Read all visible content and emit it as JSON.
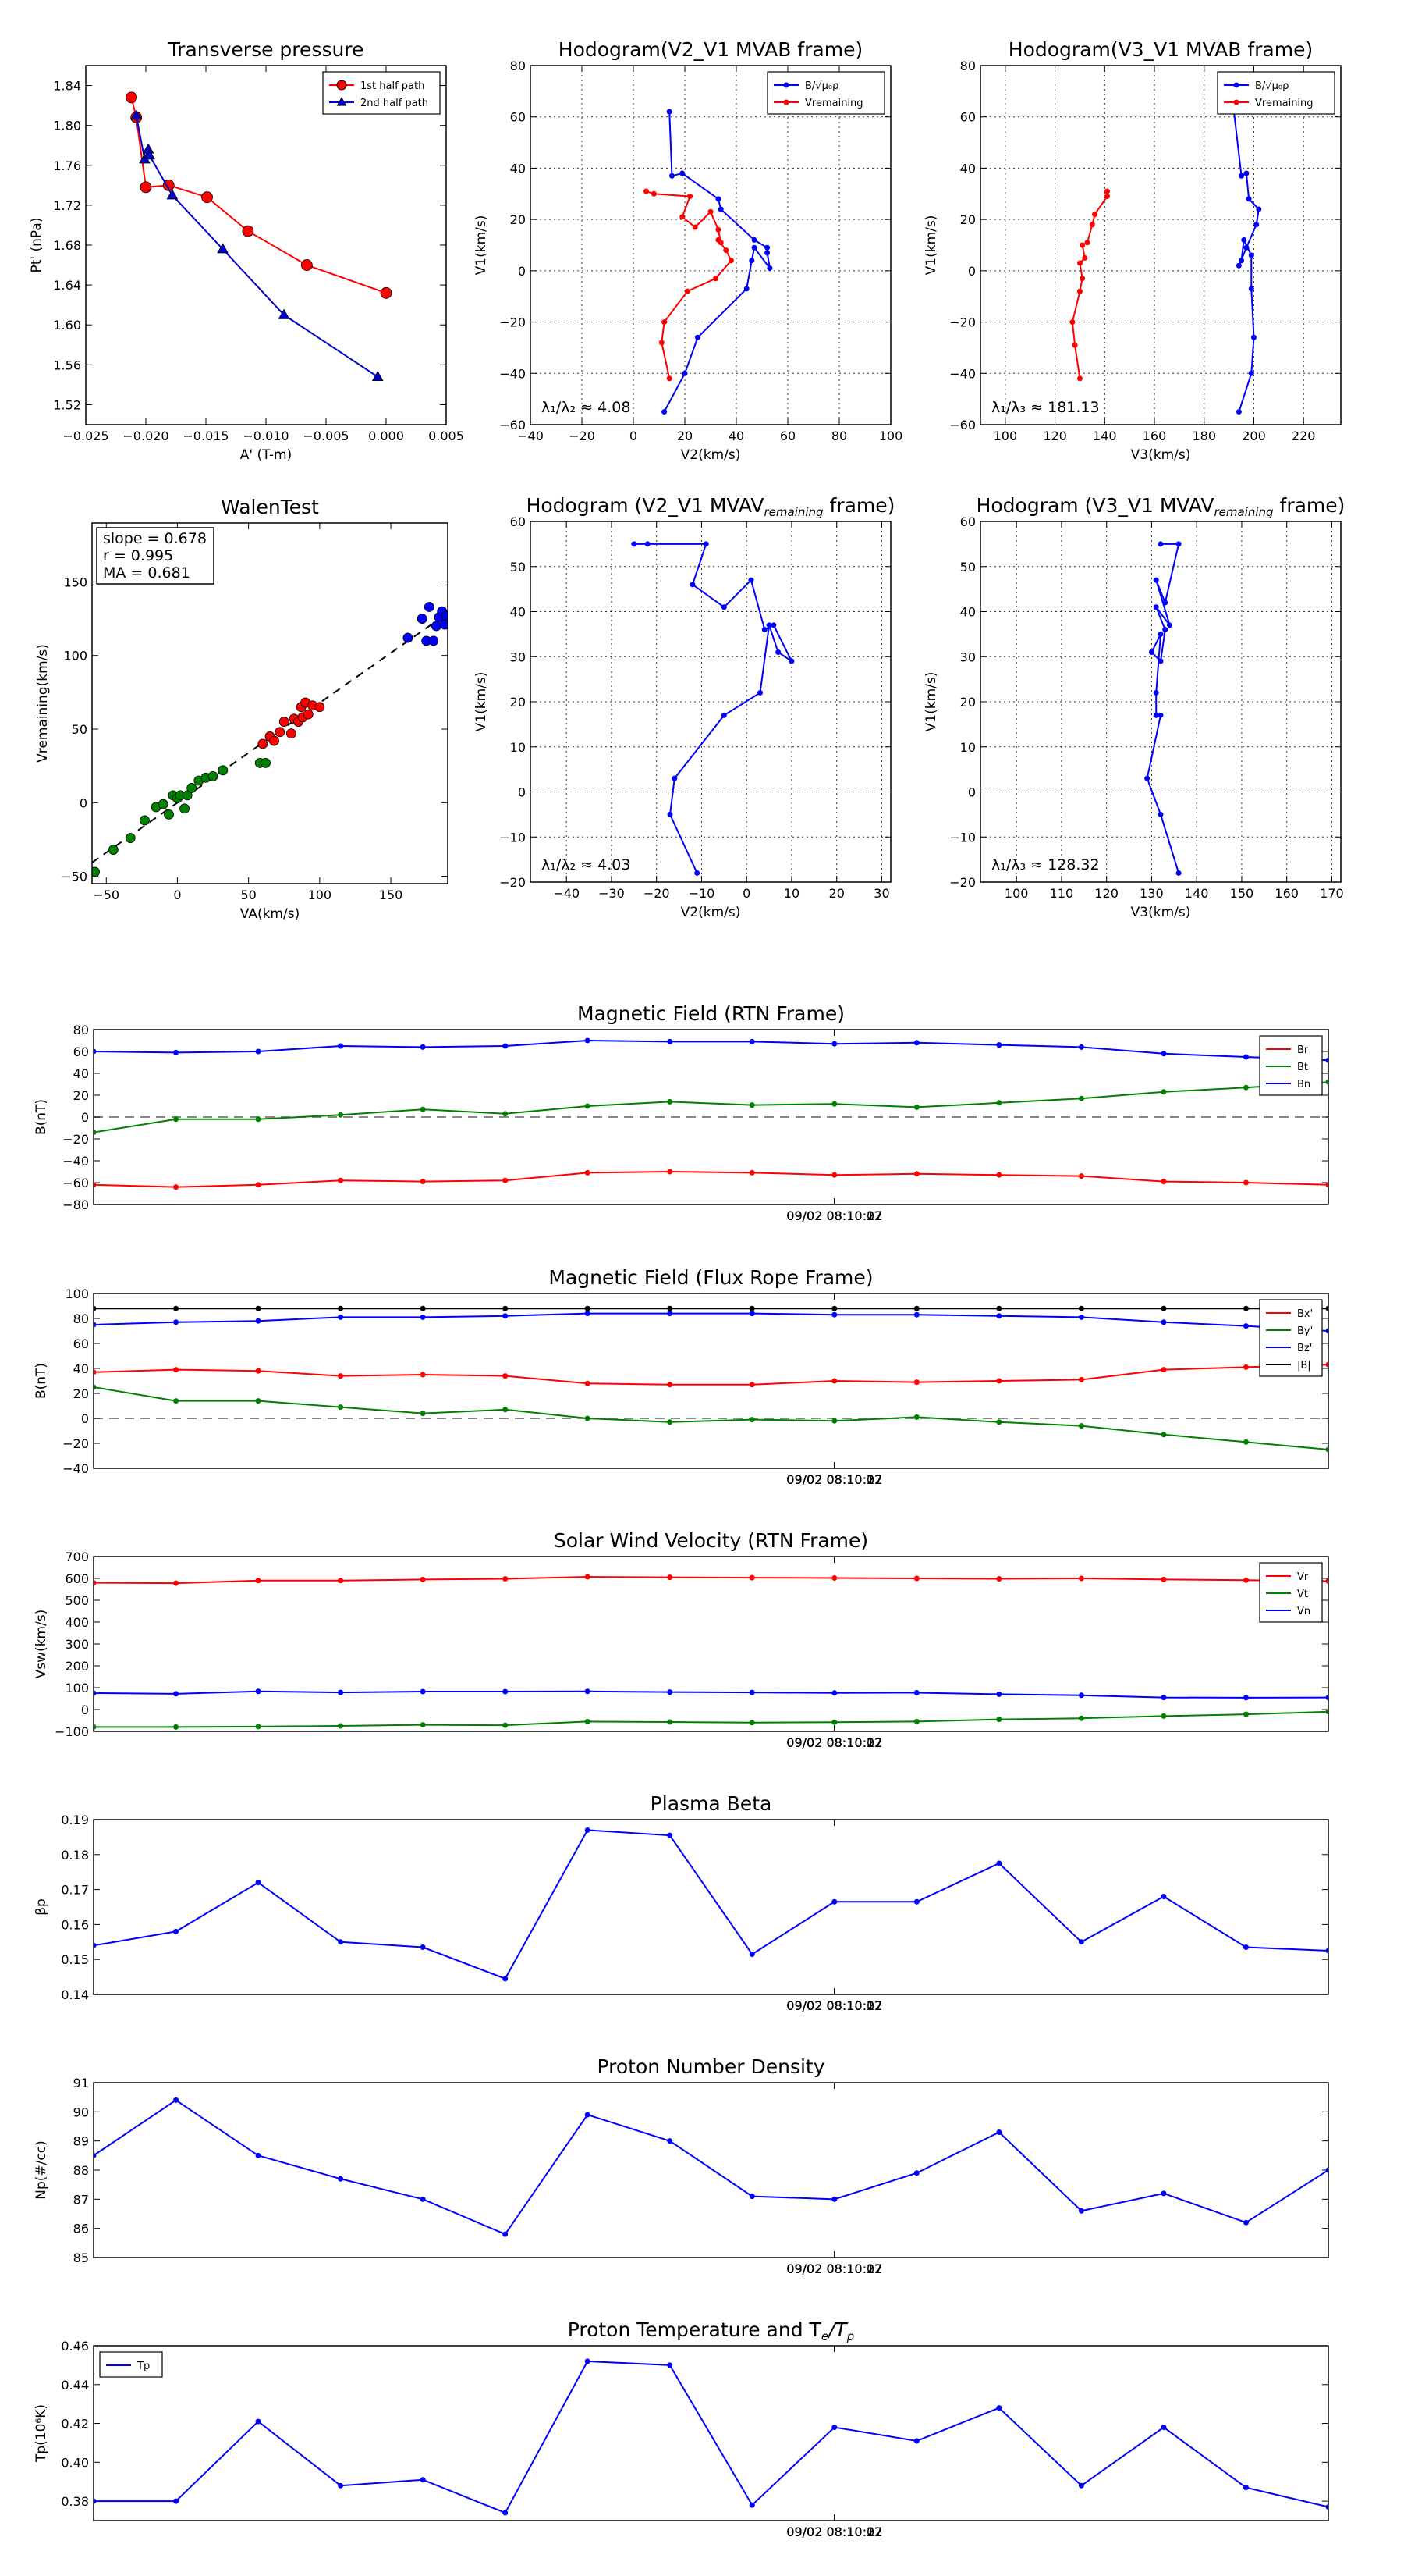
{
  "chart_data": [
    {
      "type": "scatter",
      "title": "Transverse pressure",
      "xlabel": "A' (T-m)",
      "ylabel": "Pt' (nPa)",
      "xlim": [
        -0.025,
        0.005
      ],
      "ylim": [
        1.5,
        1.86
      ],
      "xticks": [
        "−0.025",
        "−0.020",
        "−0.015",
        "−0.010",
        "−0.005",
        "0.000",
        "0.005"
      ],
      "yticks": [
        "1.52",
        "1.56",
        "1.60",
        "1.64",
        "1.68",
        "1.72",
        "1.76",
        "1.80",
        "1.84"
      ],
      "grid": false,
      "legend_position": "top-right",
      "series": [
        {
          "name": "1st half path",
          "color": "#ff0000",
          "marker": "circle",
          "x": [
            -0.0212,
            -0.0208,
            -0.02,
            -0.0181,
            -0.0149,
            -0.0115,
            -0.0066,
            0.0
          ],
          "y": [
            1.828,
            1.808,
            1.738,
            1.74,
            1.728,
            1.694,
            1.66,
            1.632
          ]
        },
        {
          "name": "2nd half path",
          "color": "#0000cc",
          "marker": "triangle",
          "x": [
            -0.0208,
            -0.0201,
            -0.0198,
            -0.0197,
            -0.0178,
            -0.0136,
            -0.0085,
            -0.0007
          ],
          "y": [
            1.81,
            1.766,
            1.776,
            1.77,
            1.73,
            1.676,
            1.61,
            1.548
          ]
        }
      ]
    },
    {
      "type": "line",
      "title": "Hodogram(V2_V1 MVAB frame)",
      "xlabel": "V2(km/s)",
      "ylabel": "V1(km/s)",
      "xlim": [
        -40,
        100
      ],
      "ylim": [
        -60,
        80
      ],
      "xticks": [
        "−40",
        "−20",
        "0",
        "20",
        "40",
        "60",
        "80",
        "100"
      ],
      "yticks": [
        "−60",
        "−40",
        "−20",
        "0",
        "20",
        "40",
        "60",
        "80"
      ],
      "grid": true,
      "legend_position": "top-right",
      "annotation": "λ₁/λ₂ ≈ 4.08",
      "series": [
        {
          "name": "B/√μ₀ρ",
          "color": "#0000ff",
          "x": [
            14,
            15,
            19,
            33,
            34,
            47,
            52,
            52,
            53,
            47,
            46,
            44,
            25,
            20,
            12
          ],
          "y": [
            62,
            37,
            38,
            28,
            24,
            12,
            9,
            7,
            1,
            9,
            4,
            -7,
            -26,
            -40,
            -55
          ]
        },
        {
          "name": "Vremaining",
          "color": "#ff0000",
          "x": [
            5,
            8,
            22,
            19,
            24,
            30,
            33,
            34,
            33,
            36,
            38,
            32,
            21,
            12,
            11,
            14
          ],
          "y": [
            31,
            30,
            29,
            21,
            17,
            23,
            16,
            11,
            12,
            8,
            4,
            -3,
            -8,
            -20,
            -28,
            -42
          ]
        }
      ]
    },
    {
      "type": "line",
      "title": "Hodogram(V3_V1 MVAB frame)",
      "xlabel": "V3(km/s)",
      "ylabel": "V1(km/s)",
      "xlim": [
        90,
        235
      ],
      "ylim": [
        -60,
        80
      ],
      "xticks": [
        "100",
        "120",
        "140",
        "160",
        "180",
        "200",
        "220"
      ],
      "yticks": [
        "−60",
        "−40",
        "−20",
        "0",
        "20",
        "40",
        "60",
        "80"
      ],
      "grid": true,
      "legend_position": "top-right",
      "annotation": "λ₁/λ₃ ≈ 181.13",
      "series": [
        {
          "name": "B/√μ₀ρ",
          "color": "#0000ff",
          "x": [
            192,
            195,
            197,
            198,
            202,
            201,
            197,
            194,
            195,
            196,
            199,
            199,
            200,
            199,
            194
          ],
          "y": [
            62,
            37,
            38,
            28,
            24,
            18,
            9,
            2,
            4,
            12,
            6,
            -7,
            -26,
            -40,
            -55
          ]
        },
        {
          "name": "Vremaining",
          "color": "#ff0000",
          "x": [
            141,
            141,
            136,
            135,
            133,
            131,
            132,
            130,
            131,
            130,
            127,
            128,
            130
          ],
          "y": [
            31,
            29,
            22,
            18,
            11,
            10,
            5,
            3,
            -3,
            -8,
            -20,
            -29,
            -42
          ]
        }
      ]
    },
    {
      "type": "scatter",
      "title": "WalenTest",
      "xlabel": "VA(km/s)",
      "ylabel": "Vremaining(km/s)",
      "xlim": [
        -60,
        190
      ],
      "ylim": [
        -55,
        190
      ],
      "xticks": [
        "−50",
        "0",
        "50",
        "100",
        "150"
      ],
      "yticks": [
        "−50",
        "0",
        "50",
        "100",
        "150"
      ],
      "grid": false,
      "annotation_lines": [
        "slope = 0.678",
        "r = 0.995",
        "MA = 0.681"
      ],
      "fit": {
        "slope": 0.678,
        "intercept": 0
      },
      "series": [
        {
          "name": "",
          "color": "#008000",
          "x": [
            -58,
            -45,
            -33,
            -23,
            -15,
            -10,
            -6,
            -3,
            0,
            2,
            5,
            7,
            10,
            15,
            20,
            25,
            32,
            58,
            62
          ],
          "y": [
            -47,
            -32,
            -24,
            -12,
            -3,
            -1,
            -8,
            5,
            3,
            5,
            -4,
            5,
            10,
            15,
            17,
            18,
            22,
            27,
            27
          ]
        },
        {
          "name": "",
          "color": "#ff0000",
          "x": [
            60,
            65,
            68,
            72,
            75,
            80,
            82,
            85,
            87,
            88,
            90,
            92,
            95,
            100
          ],
          "y": [
            40,
            45,
            42,
            48,
            55,
            47,
            57,
            55,
            65,
            58,
            68,
            60,
            66,
            65
          ]
        },
        {
          "name": "",
          "color": "#0000ff",
          "x": [
            162,
            172,
            175,
            177,
            180,
            182,
            184,
            186,
            188,
            189
          ],
          "y": [
            112,
            125,
            110,
            133,
            110,
            120,
            126,
            130,
            121,
            127
          ]
        }
      ]
    },
    {
      "type": "line",
      "title": "Hodogram (V2_V1 MVAVremaining frame)",
      "title_main": "Hodogram (V2_V1 MVAV",
      "title_sub": "remaining",
      "title_end": " frame)",
      "xlabel": "V2(km/s)",
      "ylabel": "V1(km/s)",
      "xlim": [
        -48,
        32
      ],
      "ylim": [
        -20,
        60
      ],
      "xticks": [
        "−40",
        "−30",
        "−20",
        "−10",
        "0",
        "10",
        "20",
        "30"
      ],
      "yticks": [
        "−20",
        "−10",
        "0",
        "10",
        "20",
        "30",
        "40",
        "50",
        "60"
      ],
      "grid": true,
      "annotation": "λ₁/λ₂ ≈ 4.03",
      "series": [
        {
          "name": "",
          "color": "#0000ff",
          "x": [
            -25,
            -22,
            -9,
            -12,
            -5,
            1,
            4,
            6,
            10,
            7,
            5,
            3,
            -5,
            -16,
            -17,
            -11
          ],
          "y": [
            55,
            55,
            55,
            46,
            41,
            47,
            36,
            37,
            29,
            31,
            37,
            22,
            17,
            3,
            -5,
            -18
          ]
        }
      ]
    },
    {
      "type": "line",
      "title": "Hodogram (V3_V1 MVAVremaining frame)",
      "title_main": "Hodogram (V3_V1 MVAV",
      "title_sub": "remaining",
      "title_end": " frame)",
      "xlabel": "V3(km/s)",
      "ylabel": "V1(km/s)",
      "xlim": [
        92,
        172
      ],
      "ylim": [
        -20,
        60
      ],
      "xticks": [
        "100",
        "110",
        "120",
        "130",
        "140",
        "150",
        "160",
        "170"
      ],
      "yticks": [
        "−20",
        "−10",
        "0",
        "10",
        "20",
        "30",
        "40",
        "50",
        "60"
      ],
      "grid": true,
      "annotation": "λ₁/λ₃ ≈ 128.32",
      "series": [
        {
          "name": "",
          "color": "#0000ff",
          "x": [
            132,
            136,
            133,
            131,
            134,
            131,
            133,
            132,
            130,
            132,
            131,
            131,
            132,
            129,
            132,
            136
          ],
          "y": [
            55,
            55,
            42,
            47,
            37,
            41,
            36,
            29,
            31,
            35,
            22,
            17,
            17,
            3,
            -5,
            -18
          ]
        }
      ]
    },
    {
      "type": "line",
      "title": "Magnetic Field (RTN Frame)",
      "ylabel": "B(nT)",
      "xlim": [
        0,
        15
      ],
      "ylim": [
        -80,
        80
      ],
      "xticks": [
        "09/02 08:10:07",
        "09/02 08:10:12",
        "09/02 08:10:17",
        "09/02 08:10:22"
      ],
      "yticks": [
        "−80",
        "−60",
        "−40",
        "−20",
        "0",
        "20",
        "40",
        "60",
        "80"
      ],
      "zero_line": true,
      "legend_position": "top-right",
      "x": [
        0,
        1,
        2,
        3,
        4,
        5,
        6,
        7,
        8,
        9,
        10,
        11,
        12,
        13,
        14,
        15
      ],
      "series": [
        {
          "name": "Br",
          "color": "#ff0000",
          "y": [
            -62,
            -64,
            -62,
            -58,
            -59,
            -58,
            -51,
            -50,
            -51,
            -53,
            -52,
            -53,
            -54,
            -59,
            -60,
            -62
          ]
        },
        {
          "name": "Bt",
          "color": "#008000",
          "y": [
            -14,
            -2,
            -2,
            2,
            7,
            3,
            10,
            14,
            11,
            12,
            9,
            13,
            17,
            23,
            27,
            32
          ]
        },
        {
          "name": "Bn",
          "color": "#0000ff",
          "y": [
            60,
            59,
            60,
            65,
            64,
            65,
            70,
            69,
            69,
            67,
            68,
            66,
            64,
            58,
            55,
            52
          ]
        }
      ]
    },
    {
      "type": "line",
      "title": "Magnetic Field (Flux Rope Frame)",
      "ylabel": "B(nT)",
      "xlim": [
        0,
        15
      ],
      "ylim": [
        -40,
        100
      ],
      "xticks": [
        "09/02 08:10:07",
        "09/02 08:10:12",
        "09/02 08:10:17",
        "09/02 08:10:22"
      ],
      "yticks": [
        "−40",
        "−20",
        "0",
        "20",
        "40",
        "60",
        "80",
        "100"
      ],
      "zero_line": true,
      "legend_position": "top-right",
      "x": [
        0,
        1,
        2,
        3,
        4,
        5,
        6,
        7,
        8,
        9,
        10,
        11,
        12,
        13,
        14,
        15
      ],
      "series": [
        {
          "name": "Bx'",
          "color": "#ff0000",
          "y": [
            37,
            39,
            38,
            34,
            35,
            34,
            28,
            27,
            27,
            30,
            29,
            30,
            31,
            39,
            41,
            43
          ]
        },
        {
          "name": "By'",
          "color": "#008000",
          "y": [
            25,
            14,
            14,
            9,
            4,
            7,
            0,
            -3,
            -1,
            -2,
            1,
            -3,
            -6,
            -13,
            -19,
            -25
          ]
        },
        {
          "name": "Bz'",
          "color": "#0000ff",
          "y": [
            75,
            77,
            78,
            81,
            81,
            82,
            84,
            84,
            84,
            83,
            83,
            82,
            81,
            77,
            74,
            70
          ]
        },
        {
          "name": "|B|",
          "color": "#000000",
          "y": [
            88,
            88,
            88,
            88,
            88,
            88,
            88,
            88,
            88,
            88,
            88,
            88,
            88,
            88,
            88,
            88
          ]
        }
      ]
    },
    {
      "type": "line",
      "title": "Solar Wind Velocity (RTN Frame)",
      "ylabel": "Vsw(km/s)",
      "xlim": [
        0,
        15
      ],
      "ylim": [
        -100,
        700
      ],
      "xticks": [
        "09/02 08:10:07",
        "09/02 08:10:12",
        "09/02 08:10:17",
        "09/02 08:10:22"
      ],
      "yticks": [
        "−100",
        "0",
        "100",
        "200",
        "300",
        "400",
        "500",
        "600",
        "700"
      ],
      "legend_position": "top-right",
      "x": [
        0,
        1,
        2,
        3,
        4,
        5,
        6,
        7,
        8,
        9,
        10,
        11,
        12,
        13,
        14,
        15
      ],
      "series": [
        {
          "name": "Vr",
          "color": "#ff0000",
          "y": [
            580,
            578,
            590,
            590,
            595,
            598,
            607,
            605,
            603,
            602,
            600,
            598,
            600,
            595,
            592,
            588
          ]
        },
        {
          "name": "Vt",
          "color": "#008000",
          "y": [
            -80,
            -80,
            -78,
            -75,
            -70,
            -72,
            -55,
            -57,
            -60,
            -58,
            -55,
            -45,
            -40,
            -30,
            -22,
            -10
          ]
        },
        {
          "name": "Vn",
          "color": "#0000ff",
          "y": [
            75,
            72,
            83,
            78,
            82,
            82,
            83,
            80,
            78,
            76,
            77,
            70,
            65,
            55,
            54,
            55
          ]
        }
      ]
    },
    {
      "type": "line",
      "title": "Plasma Beta",
      "ylabel": "βp",
      "xlim": [
        0,
        15
      ],
      "ylim": [
        0.14,
        0.19
      ],
      "xticks": [
        "09/02 08:10:07",
        "09/02 08:10:12",
        "09/02 08:10:17",
        "09/02 08:10:22"
      ],
      "yticks": [
        "0.14",
        "0.15",
        "0.16",
        "0.17",
        "0.18",
        "0.19"
      ],
      "x": [
        0,
        1,
        2,
        3,
        4,
        5,
        6,
        7,
        8,
        9,
        10,
        11,
        12,
        13,
        14,
        15
      ],
      "series": [
        {
          "name": "",
          "color": "#0000ff",
          "y": [
            0.154,
            0.158,
            0.172,
            0.155,
            0.1535,
            0.1445,
            0.187,
            0.1855,
            0.1515,
            0.1665,
            0.1665,
            0.1775,
            0.155,
            0.168,
            0.1535,
            0.1525
          ]
        }
      ]
    },
    {
      "type": "line",
      "title": "Proton Number Density",
      "ylabel": "Np(#/cc)",
      "xlim": [
        0,
        15
      ],
      "ylim": [
        85,
        91
      ],
      "xticks": [
        "09/02 08:10:07",
        "09/02 08:10:12",
        "09/02 08:10:17",
        "09/02 08:10:22"
      ],
      "yticks": [
        "85",
        "86",
        "87",
        "88",
        "89",
        "90",
        "91"
      ],
      "x": [
        0,
        1,
        2,
        3,
        4,
        5,
        6,
        7,
        8,
        9,
        10,
        11,
        12,
        13,
        14,
        15
      ],
      "series": [
        {
          "name": "",
          "color": "#0000ff",
          "y": [
            88.5,
            90.4,
            88.5,
            87.7,
            87.0,
            85.8,
            89.9,
            89.0,
            87.1,
            87.0,
            87.9,
            89.3,
            86.6,
            87.2,
            86.2,
            88.0
          ]
        }
      ]
    },
    {
      "type": "line",
      "title": "Proton Temperature and Te/Tp",
      "title_main": "Proton Temperature and T",
      "title_sub1": "e",
      "title_mid": "/T",
      "title_sub2": "p",
      "ylabel": "Tp(10⁶K)",
      "xlim": [
        0,
        15
      ],
      "ylim": [
        0.37,
        0.46
      ],
      "xticks": [
        "09/02 08:10:07",
        "09/02 08:10:12",
        "09/02 08:10:17",
        "09/02 08:10:22"
      ],
      "yticks": [
        "0.38",
        "0.40",
        "0.42",
        "0.44",
        "0.46"
      ],
      "legend_position": "top-left",
      "x": [
        0,
        1,
        2,
        3,
        4,
        5,
        6,
        7,
        8,
        9,
        10,
        11,
        12,
        13,
        14,
        15
      ],
      "series": [
        {
          "name": "Tp",
          "color": "#0000ff",
          "y": [
            0.38,
            0.38,
            0.421,
            0.388,
            0.391,
            0.374,
            0.452,
            0.45,
            0.378,
            0.418,
            0.411,
            0.428,
            0.388,
            0.418,
            0.387,
            0.377
          ]
        }
      ]
    }
  ]
}
